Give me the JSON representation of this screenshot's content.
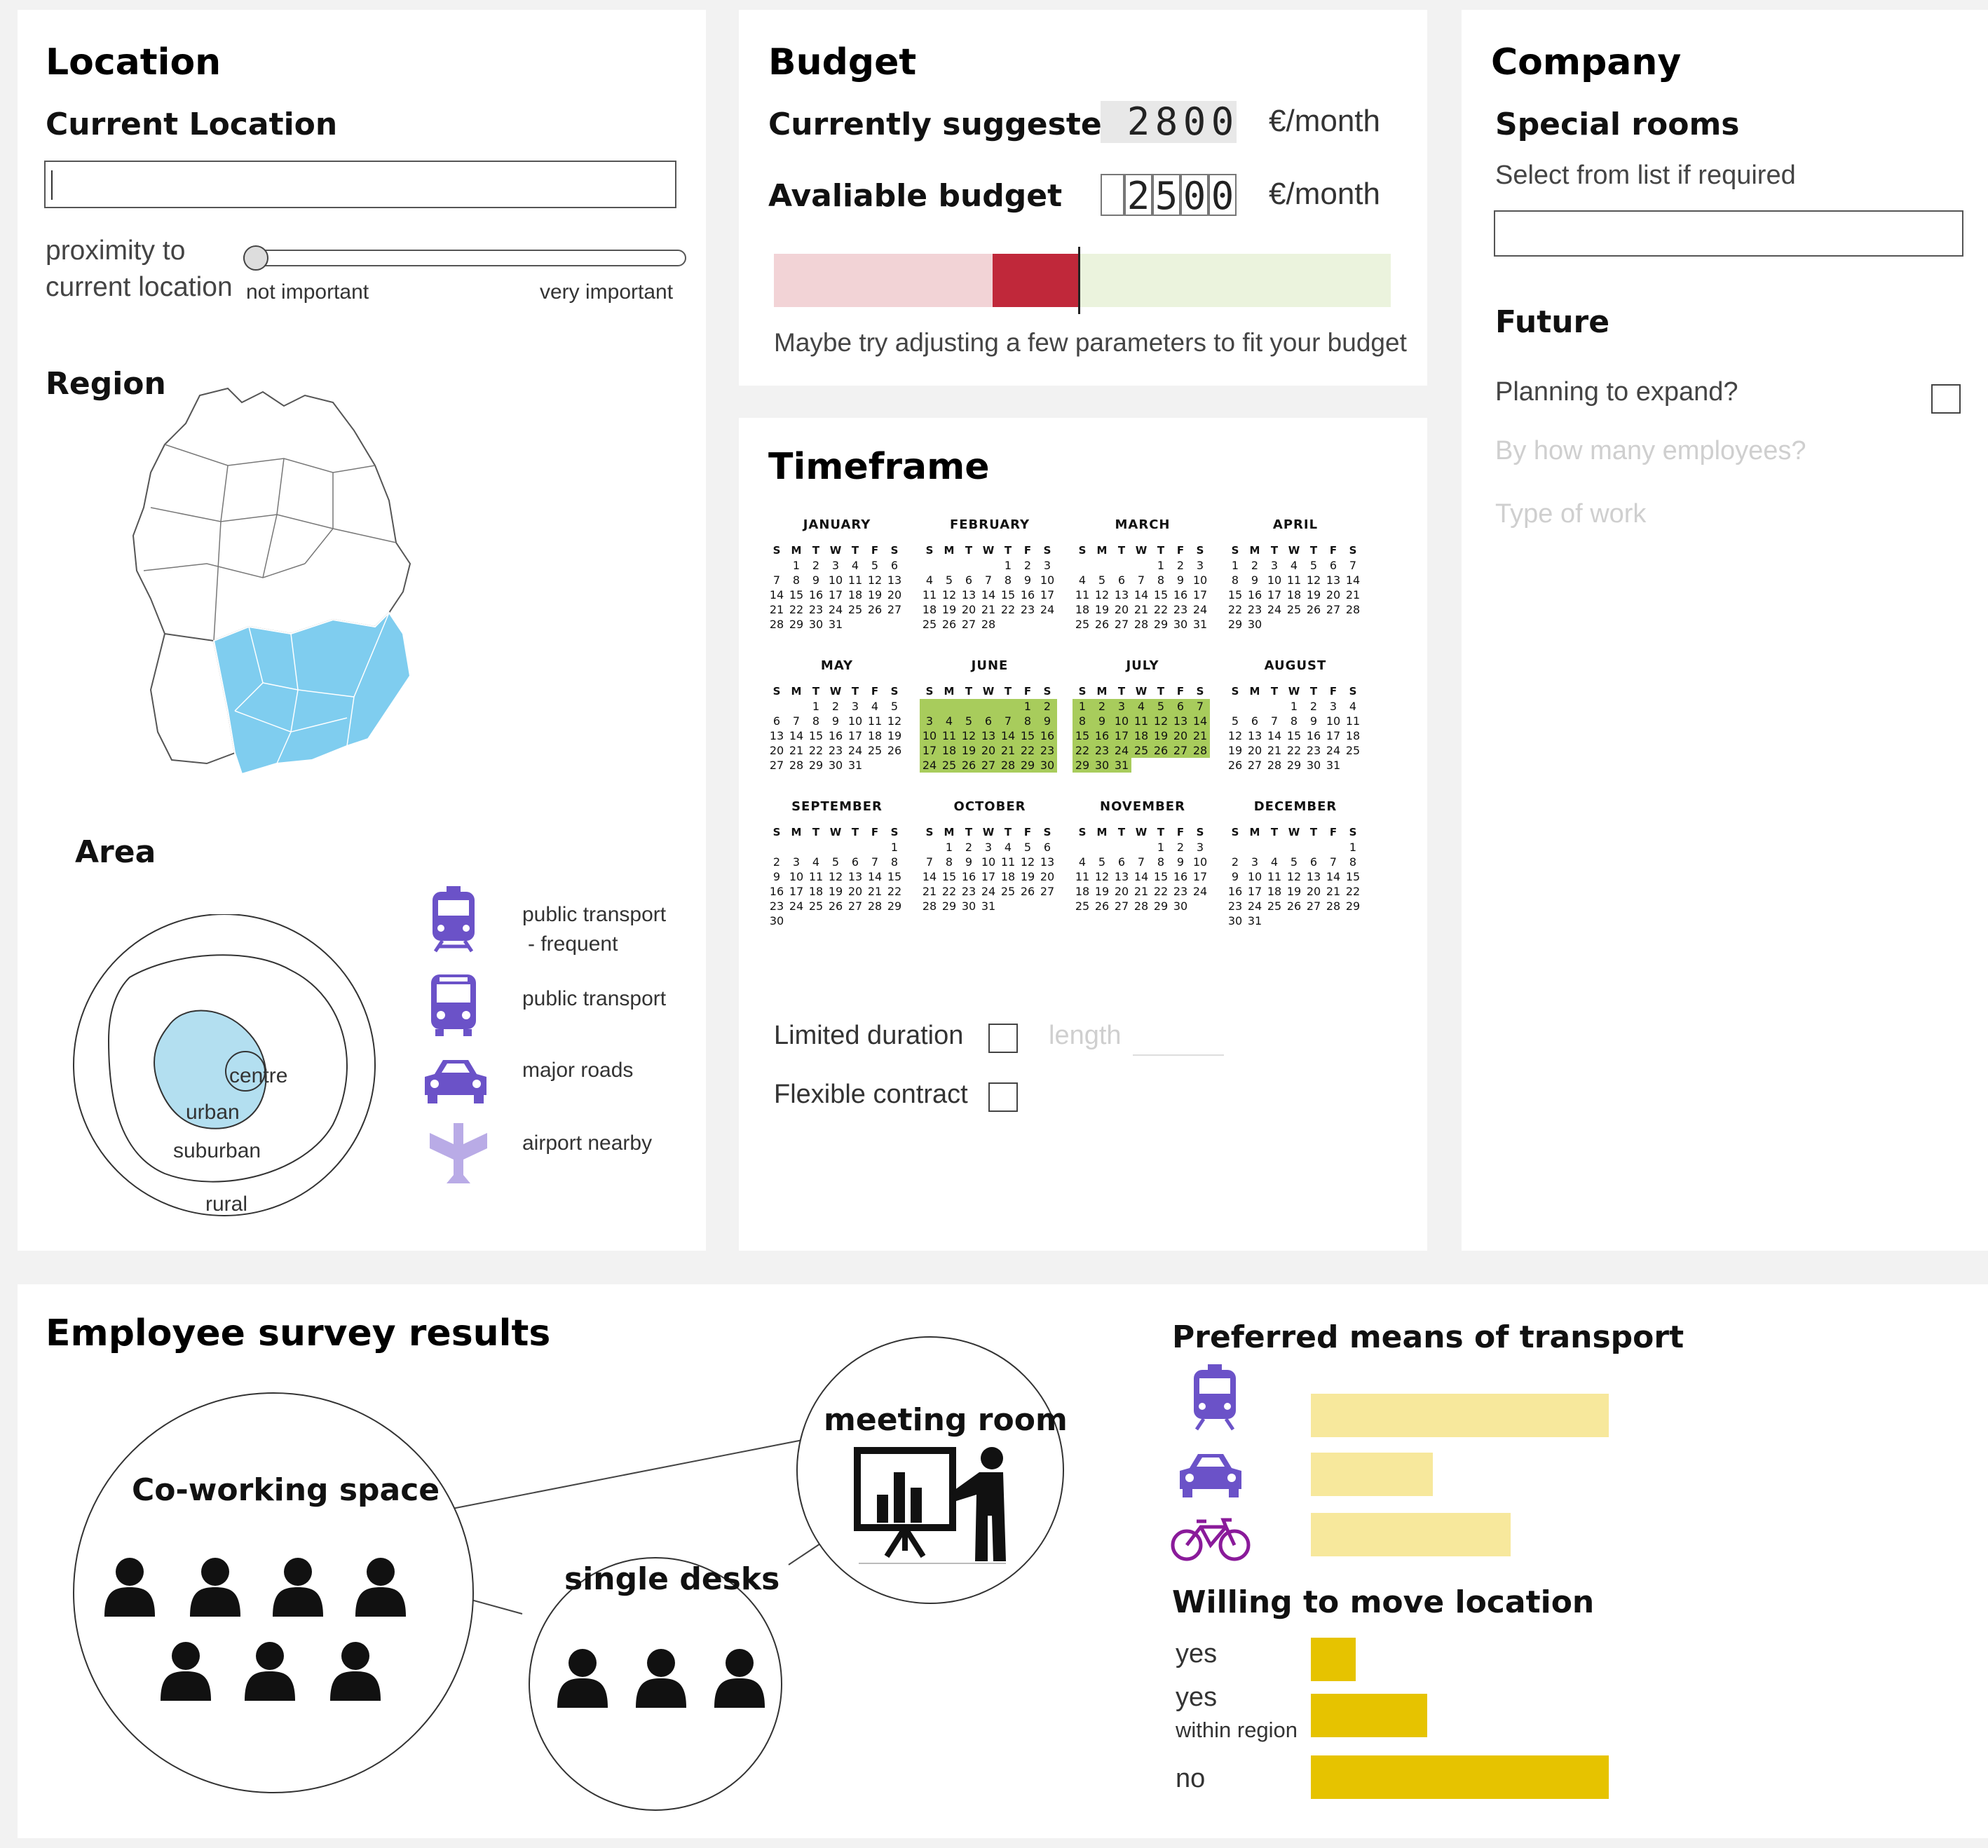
{
  "location": {
    "title": "Location",
    "current_location_label": "Current Location",
    "current_location_value": "",
    "proximity_label_1": "proximity to",
    "proximity_label_2": "current location",
    "slider_min_label": "not important",
    "slider_max_label": "very important",
    "proximity_level": 0,
    "region_title": "Region",
    "area_title": "Area",
    "area_rings": {
      "centre": "centre",
      "urban": "urban",
      "suburban": "suburban",
      "rural": "rural"
    },
    "transport": [
      {
        "icon": "train-icon",
        "label_1": "public transport",
        "label_2": "- frequent"
      },
      {
        "icon": "bus-icon",
        "label_1": "public transport",
        "label_2": ""
      },
      {
        "icon": "car-icon",
        "label_1": "major roads",
        "label_2": ""
      },
      {
        "icon": "airplane-icon",
        "label_1": "airport nearby",
        "label_2": ""
      }
    ]
  },
  "budget": {
    "title": "Budget",
    "suggested_label": "Currently suggested",
    "suggested_digits": [
      "",
      "2",
      "8",
      "0",
      "0"
    ],
    "suggested_unit": "€/month",
    "available_label": "Avaliable budget",
    "available_digits": [
      "",
      "2",
      "5",
      "0",
      "0"
    ],
    "available_unit": "€/month",
    "hint": "Maybe try adjusting a few parameters to fit your budget",
    "colors": {
      "over": "#c0283a",
      "over_light": "#f2d3d6",
      "ok": "#ebf3dd"
    }
  },
  "timeframe": {
    "title": "Timeframe",
    "weekday_headers": [
      "S",
      "M",
      "T",
      "W",
      "T",
      "F",
      "S"
    ],
    "months": [
      {
        "name": "JANUARY",
        "offset": 1,
        "days": 31,
        "highlight": []
      },
      {
        "name": "FEBRUARY",
        "offset": 4,
        "days": 28,
        "highlight": []
      },
      {
        "name": "MARCH",
        "offset": 4,
        "days": 31,
        "highlight": []
      },
      {
        "name": "APRIL",
        "offset": 0,
        "days": 30,
        "highlight": []
      },
      {
        "name": "MAY",
        "offset": 2,
        "days": 31,
        "highlight": []
      },
      {
        "name": "JUNE",
        "offset": 5,
        "days": 30,
        "highlight": [
          1,
          30
        ]
      },
      {
        "name": "JULY",
        "offset": 0,
        "days": 31,
        "highlight": [
          1,
          31
        ]
      },
      {
        "name": "AUGUST",
        "offset": 3,
        "days": 31,
        "highlight": []
      },
      {
        "name": "SEPTEMBER",
        "offset": 6,
        "days": 30,
        "highlight": []
      },
      {
        "name": "OCTOBER",
        "offset": 1,
        "days": 31,
        "highlight": []
      },
      {
        "name": "NOVEMBER",
        "offset": 4,
        "days": 30,
        "highlight": []
      },
      {
        "name": "DECEMBER",
        "offset": 6,
        "days": 31,
        "highlight": []
      }
    ],
    "limited_label": "Limited duration",
    "limited_checked": false,
    "length_placeholder": "length",
    "flexible_label": "Flexible contract",
    "flexible_checked": false
  },
  "company": {
    "title": "Company",
    "special_rooms_label": "Special rooms",
    "special_rooms_hint": "Select from list if required",
    "special_rooms_value": "",
    "future_label": "Future",
    "expand_label": "Planning to expand?",
    "expand_checked": false,
    "employees_label": "By how many employees?",
    "work_type_label": "Type of work"
  },
  "survey": {
    "title": "Employee survey results",
    "coworking_label": "Co-working space",
    "coworking_people": 7,
    "single_desks_label": "single desks",
    "single_desks_people": 3,
    "meeting_room_label": "meeting room",
    "transport_title": "Preferred means of transport",
    "move_title": "Willing to move location",
    "colors": {
      "transport_bar": "#f7e89c",
      "move_bar": "#e6c300",
      "icon": "#6b52c8"
    }
  },
  "chart_data": [
    {
      "type": "bar",
      "title": "Preferred means of transport",
      "categories": [
        "train-icon",
        "car-icon",
        "bicycle-icon"
      ],
      "values": [
        100,
        41,
        67
      ],
      "xlim": [
        0,
        100
      ]
    },
    {
      "type": "bar",
      "title": "Willing to move location",
      "categories": [
        "yes",
        "yes within region",
        "no"
      ],
      "values": [
        15,
        39,
        100
      ],
      "xlim": [
        0,
        100
      ]
    }
  ]
}
